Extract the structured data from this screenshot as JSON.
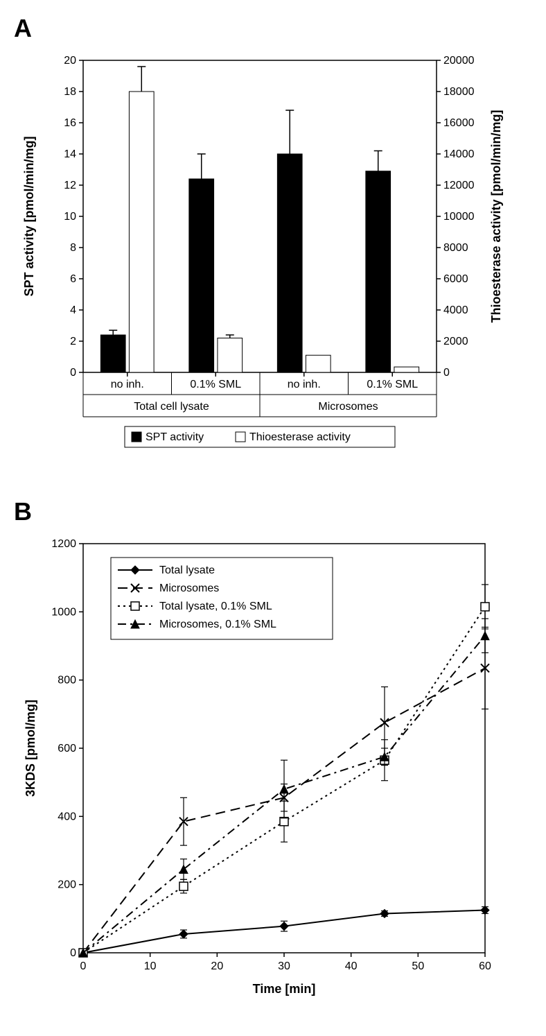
{
  "panelA": {
    "label": "A",
    "type": "bar",
    "y1label": "SPT activity [pmol/min/mg]",
    "y2label": "Thioesterase activity [pmol/min/mg]",
    "y1lim": [
      0,
      20
    ],
    "y2lim": [
      0,
      20000
    ],
    "y1tick_step": 2,
    "y2tick_step": 2000,
    "groups": [
      "Total cell lysate",
      "Microsomes"
    ],
    "subgroups": [
      "no inh.",
      "0.1% SML"
    ],
    "legend": [
      "SPT activity",
      "Thioesterase activity"
    ],
    "bar_colors": [
      "#000000",
      "#ffffff"
    ],
    "spt_values": [
      2.4,
      12.4,
      14.0,
      12.9
    ],
    "spt_errors": [
      0.3,
      1.6,
      2.8,
      1.3
    ],
    "thio_values": [
      18000,
      2200,
      1100,
      350
    ],
    "thio_errors": [
      1600,
      200,
      0,
      0
    ],
    "axis_color": "#000000",
    "grid_color": "#000000",
    "label_fontsize": 18,
    "tick_fontsize": 16
  },
  "panelB": {
    "label": "B",
    "type": "line",
    "xlabel": "Time [min]",
    "ylabel": "3KDS [pmol/mg]",
    "xlim": [
      0,
      60
    ],
    "ylim": [
      0,
      1200
    ],
    "xtick_step": 10,
    "ytick_step": 200,
    "series": [
      {
        "name": "Total lysate",
        "marker": "diamond-filled",
        "dash": "solid",
        "color": "#000000",
        "x": [
          0,
          15,
          30,
          45,
          60
        ],
        "y": [
          0,
          55,
          78,
          115,
          125
        ],
        "err": [
          0,
          12,
          15,
          8,
          10
        ]
      },
      {
        "name": "Microsomes",
        "marker": "x",
        "dash": "long-dash",
        "color": "#000000",
        "x": [
          0,
          15,
          30,
          45,
          60
        ],
        "y": [
          0,
          385,
          455,
          675,
          835
        ],
        "err": [
          0,
          70,
          40,
          105,
          120
        ]
      },
      {
        "name": "Total lysate, 0.1% SML",
        "marker": "square-open",
        "dash": "dotted",
        "color": "#000000",
        "x": [
          0,
          15,
          30,
          45,
          60
        ],
        "y": [
          0,
          195,
          385,
          565,
          1015
        ],
        "err": [
          0,
          20,
          60,
          60,
          65
        ]
      },
      {
        "name": "Microsomes, 0.1% SML",
        "marker": "triangle-filled",
        "dash": "dash-dot",
        "color": "#000000",
        "x": [
          0,
          15,
          30,
          45,
          60
        ],
        "y": [
          0,
          245,
          480,
          575,
          930
        ],
        "err": [
          0,
          30,
          85,
          25,
          50
        ]
      }
    ],
    "axis_color": "#000000",
    "label_fontsize": 18,
    "tick_fontsize": 16
  }
}
